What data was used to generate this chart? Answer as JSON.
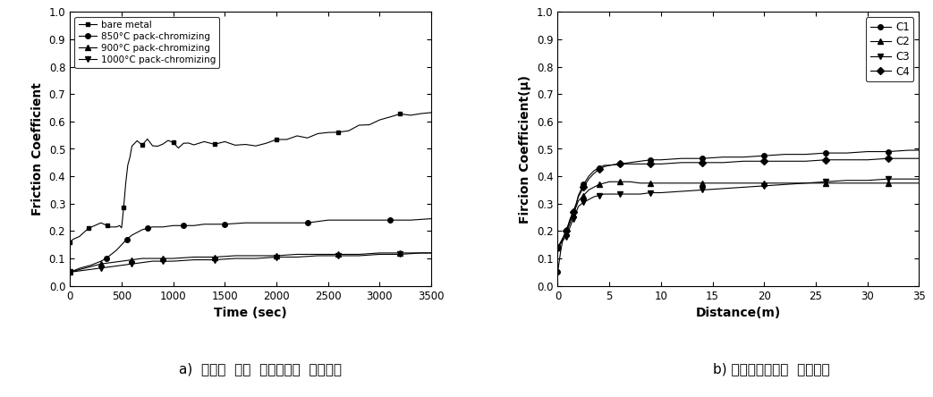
{
  "left": {
    "ylabel": "Friction Coefficient",
    "xlabel": "Time (sec)",
    "xlim": [
      0,
      3500
    ],
    "ylim": [
      0.0,
      1.0
    ],
    "yticks": [
      0.0,
      0.1,
      0.2,
      0.3,
      0.4,
      0.5,
      0.6,
      0.7,
      0.8,
      0.9,
      1.0
    ],
    "xticks": [
      0,
      500,
      1000,
      1500,
      2000,
      2500,
      3000,
      3500
    ],
    "caption": "a)  온도별  코팅  조건에서의  마찰계수",
    "legend": [
      "bare metal",
      "850°C pack-chromizing",
      "900°C pack-chromizing",
      "1000°C pack-chromizing"
    ],
    "markers": [
      "s",
      "o",
      "^",
      "v"
    ],
    "bare_metal_x": [
      0,
      30,
      60,
      90,
      120,
      150,
      180,
      210,
      240,
      270,
      300,
      330,
      360,
      390,
      420,
      450,
      480,
      500,
      520,
      540,
      560,
      580,
      600,
      650,
      700,
      750,
      800,
      850,
      900,
      950,
      1000,
      1050,
      1100,
      1150,
      1200,
      1300,
      1400,
      1500,
      1600,
      1700,
      1800,
      1900,
      2000,
      2100,
      2200,
      2300,
      2400,
      2500,
      2600,
      2700,
      2800,
      2900,
      3000,
      3100,
      3200,
      3300,
      3400,
      3500
    ],
    "bare_metal_y": [
      0.16,
      0.17,
      0.175,
      0.18,
      0.19,
      0.2,
      0.21,
      0.215,
      0.22,
      0.225,
      0.23,
      0.225,
      0.22,
      0.215,
      0.215,
      0.215,
      0.22,
      0.22,
      0.28,
      0.38,
      0.44,
      0.48,
      0.5,
      0.52,
      0.525,
      0.525,
      0.52,
      0.515,
      0.515,
      0.52,
      0.515,
      0.515,
      0.52,
      0.52,
      0.515,
      0.52,
      0.525,
      0.52,
      0.525,
      0.525,
      0.52,
      0.525,
      0.53,
      0.535,
      0.54,
      0.545,
      0.55,
      0.555,
      0.565,
      0.57,
      0.575,
      0.585,
      0.595,
      0.61,
      0.62,
      0.625,
      0.63,
      0.635
    ],
    "chrom850_x": [
      0,
      100,
      200,
      300,
      350,
      400,
      450,
      500,
      550,
      600,
      650,
      700,
      750,
      800,
      900,
      1000,
      1100,
      1200,
      1300,
      1400,
      1500,
      1700,
      1900,
      2100,
      2300,
      2500,
      2700,
      2900,
      3100,
      3300,
      3500
    ],
    "chrom850_y": [
      0.05,
      0.065,
      0.075,
      0.09,
      0.1,
      0.115,
      0.13,
      0.15,
      0.17,
      0.185,
      0.195,
      0.205,
      0.21,
      0.215,
      0.215,
      0.22,
      0.22,
      0.22,
      0.225,
      0.225,
      0.225,
      0.23,
      0.23,
      0.23,
      0.23,
      0.24,
      0.24,
      0.24,
      0.24,
      0.24,
      0.245
    ],
    "chrom900_x": [
      0,
      100,
      200,
      300,
      400,
      500,
      600,
      700,
      800,
      900,
      1000,
      1200,
      1400,
      1600,
      1800,
      2000,
      2200,
      2400,
      2600,
      2800,
      3000,
      3200,
      3400,
      3500
    ],
    "chrom900_y": [
      0.05,
      0.06,
      0.07,
      0.08,
      0.085,
      0.09,
      0.095,
      0.1,
      0.1,
      0.1,
      0.1,
      0.105,
      0.105,
      0.11,
      0.11,
      0.11,
      0.115,
      0.115,
      0.115,
      0.115,
      0.12,
      0.12,
      0.12,
      0.12
    ],
    "chrom1000_x": [
      0,
      100,
      200,
      300,
      400,
      500,
      600,
      700,
      800,
      900,
      1000,
      1200,
      1400,
      1600,
      1800,
      2000,
      2200,
      2400,
      2600,
      2800,
      3000,
      3200,
      3400,
      3500
    ],
    "chrom1000_y": [
      0.05,
      0.055,
      0.06,
      0.065,
      0.07,
      0.075,
      0.08,
      0.085,
      0.09,
      0.09,
      0.09,
      0.095,
      0.095,
      0.1,
      0.1,
      0.105,
      0.105,
      0.11,
      0.11,
      0.11,
      0.115,
      0.115,
      0.12,
      0.12
    ]
  },
  "right": {
    "ylabel": "Fircion Coefficient(μ)",
    "xlabel": "Distance(m)",
    "xlim": [
      0,
      35
    ],
    "ylim": [
      0.0,
      1.0
    ],
    "yticks": [
      0.0,
      0.1,
      0.2,
      0.3,
      0.4,
      0.5,
      0.6,
      0.7,
      0.8,
      0.9,
      1.0
    ],
    "xticks": [
      0,
      5,
      10,
      15,
      20,
      25,
      30,
      35
    ],
    "caption": "b) 카바이드조건의  마찰계수",
    "legend": [
      "C1",
      "C2",
      "C3",
      "C4"
    ],
    "markers": [
      "o",
      "^",
      "v",
      "D"
    ],
    "C1_x": [
      0,
      0.3,
      0.5,
      0.8,
      1,
      1.2,
      1.5,
      1.8,
      2,
      2.5,
      3,
      3.5,
      4,
      4.5,
      5,
      6,
      7,
      8,
      9,
      10,
      12,
      14,
      16,
      18,
      20,
      22,
      24,
      26,
      28,
      30,
      32,
      34,
      35
    ],
    "C1_y": [
      0.05,
      0.13,
      0.17,
      0.2,
      0.22,
      0.24,
      0.27,
      0.3,
      0.33,
      0.37,
      0.4,
      0.42,
      0.43,
      0.44,
      0.44,
      0.445,
      0.45,
      0.455,
      0.46,
      0.46,
      0.465,
      0.465,
      0.47,
      0.47,
      0.475,
      0.48,
      0.48,
      0.485,
      0.485,
      0.49,
      0.49,
      0.495,
      0.495
    ],
    "C2_x": [
      0,
      0.3,
      0.5,
      0.8,
      1,
      1.2,
      1.5,
      1.8,
      2,
      2.5,
      3,
      3.5,
      4,
      4.5,
      5,
      6,
      7,
      8,
      9,
      10,
      12,
      14,
      16,
      18,
      20,
      22,
      24,
      26,
      28,
      30,
      32,
      34,
      35
    ],
    "C2_y": [
      0.14,
      0.16,
      0.175,
      0.19,
      0.21,
      0.23,
      0.26,
      0.29,
      0.31,
      0.33,
      0.35,
      0.36,
      0.37,
      0.375,
      0.38,
      0.38,
      0.38,
      0.375,
      0.375,
      0.375,
      0.375,
      0.375,
      0.375,
      0.375,
      0.375,
      0.375,
      0.375,
      0.375,
      0.375,
      0.375,
      0.375,
      0.375,
      0.375
    ],
    "C3_x": [
      0,
      0.3,
      0.5,
      0.8,
      1,
      1.2,
      1.5,
      1.8,
      2,
      2.5,
      3,
      3.5,
      4,
      4.5,
      5,
      6,
      7,
      8,
      9,
      10,
      12,
      14,
      16,
      18,
      20,
      22,
      24,
      26,
      28,
      30,
      32,
      34,
      35
    ],
    "C3_y": [
      0.14,
      0.155,
      0.165,
      0.18,
      0.195,
      0.215,
      0.245,
      0.27,
      0.29,
      0.305,
      0.315,
      0.325,
      0.33,
      0.335,
      0.335,
      0.335,
      0.335,
      0.335,
      0.34,
      0.34,
      0.345,
      0.35,
      0.355,
      0.36,
      0.365,
      0.37,
      0.375,
      0.38,
      0.385,
      0.385,
      0.39,
      0.39,
      0.39
    ],
    "C4_x": [
      0,
      0.3,
      0.5,
      0.8,
      1,
      1.2,
      1.5,
      1.8,
      2,
      2.5,
      3,
      3.5,
      4,
      4.5,
      5,
      6,
      7,
      8,
      9,
      10,
      12,
      14,
      16,
      18,
      20,
      22,
      24,
      26,
      28,
      30,
      32,
      34,
      35
    ],
    "C4_y": [
      0.14,
      0.16,
      0.175,
      0.2,
      0.22,
      0.245,
      0.27,
      0.3,
      0.325,
      0.36,
      0.39,
      0.41,
      0.425,
      0.435,
      0.44,
      0.445,
      0.445,
      0.445,
      0.445,
      0.445,
      0.45,
      0.45,
      0.45,
      0.455,
      0.455,
      0.455,
      0.455,
      0.46,
      0.46,
      0.46,
      0.465,
      0.465,
      0.465
    ]
  },
  "bg_color": "#ffffff",
  "line_color": "#000000"
}
